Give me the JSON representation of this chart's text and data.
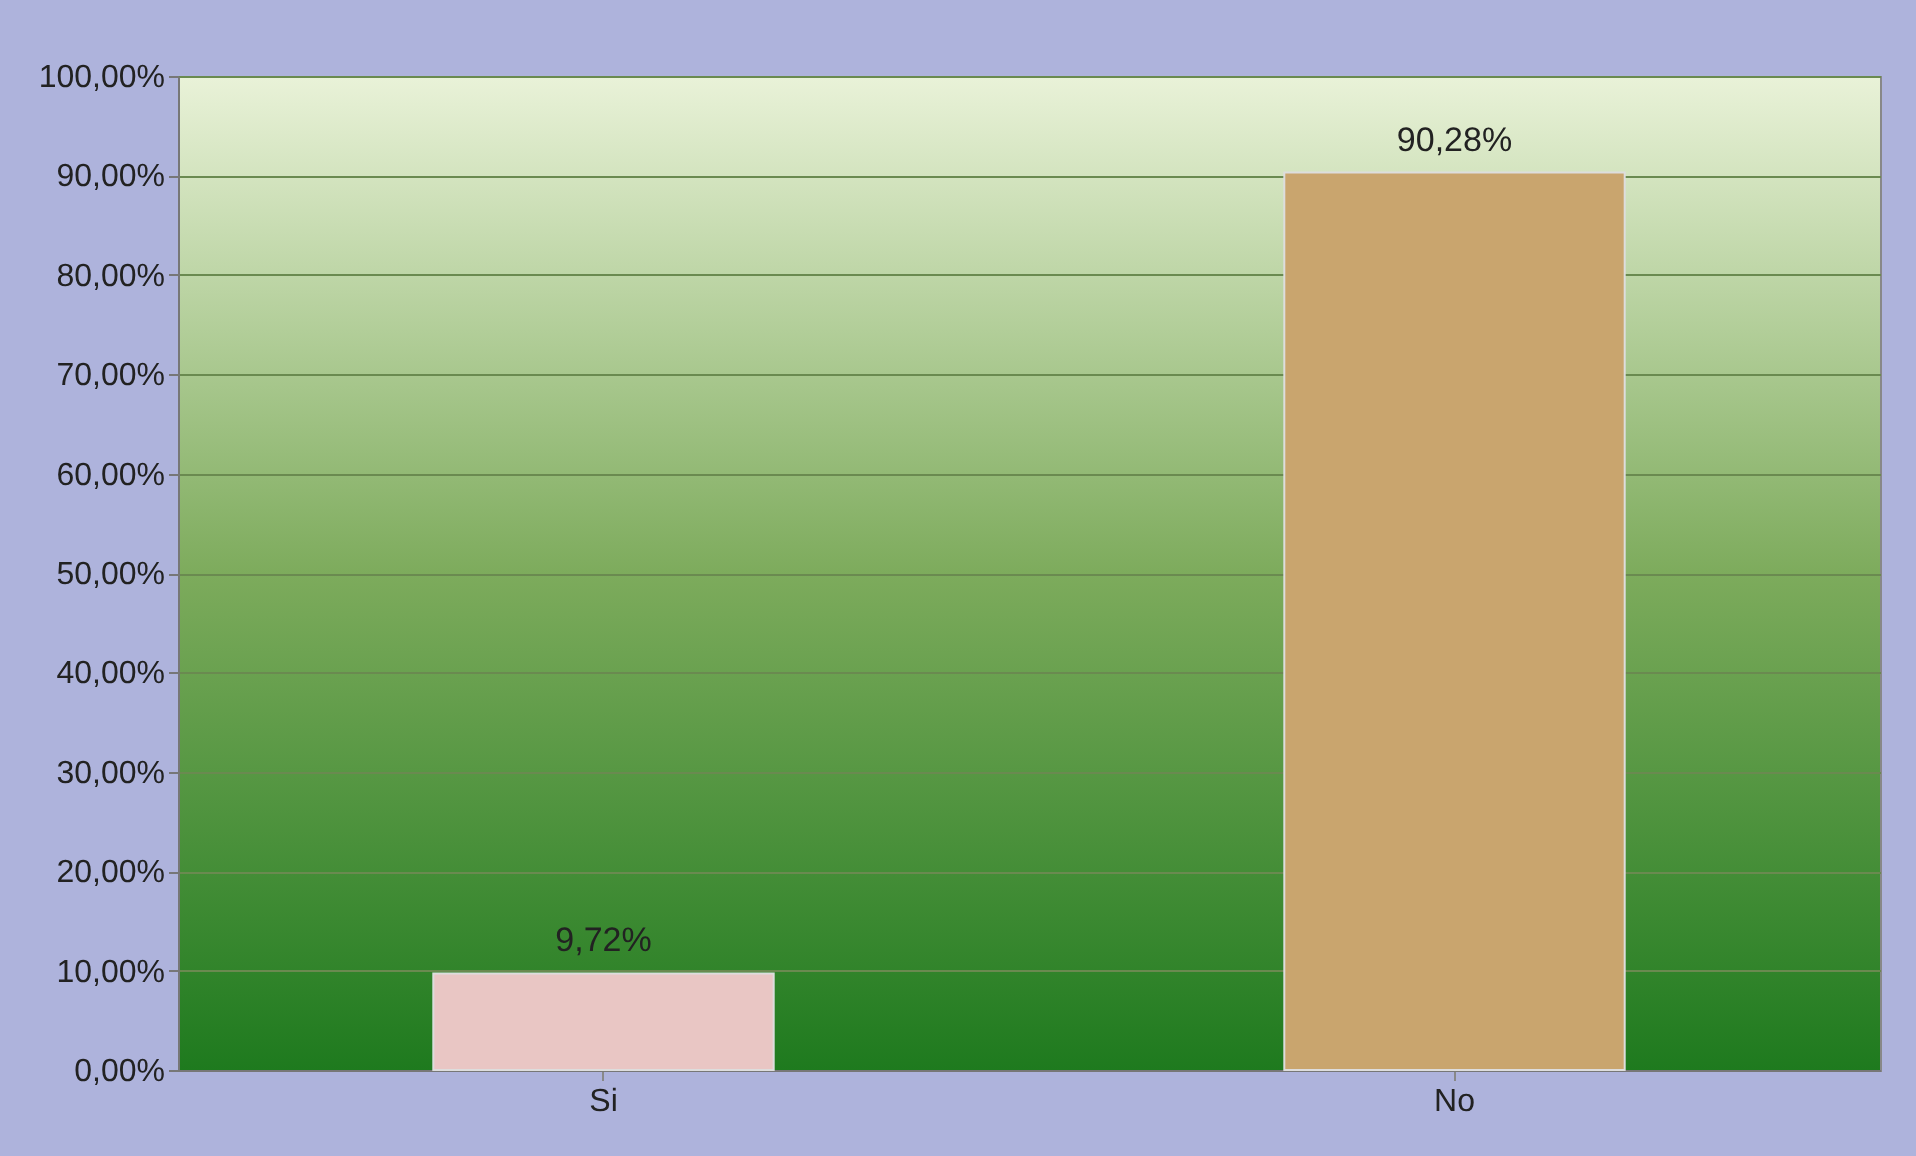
{
  "chart_data": {
    "type": "bar",
    "categories": [
      "Si",
      "No"
    ],
    "values": [
      9.72,
      90.28
    ],
    "colors": [
      "#e9c6c4",
      "#c9a56e"
    ],
    "value_labels": [
      "9,72%",
      "90,28%"
    ],
    "ylim": [
      0,
      100
    ],
    "yticks": [
      {
        "value": 0,
        "label": "0,00%"
      },
      {
        "value": 10,
        "label": "10,00%"
      },
      {
        "value": 20,
        "label": "20,00%"
      },
      {
        "value": 30,
        "label": "30,00%"
      },
      {
        "value": 40,
        "label": "40,00%"
      },
      {
        "value": 50,
        "label": "50,00%"
      },
      {
        "value": 60,
        "label": "60,00%"
      },
      {
        "value": 70,
        "label": "70,00%"
      },
      {
        "value": 80,
        "label": "80,00%"
      },
      {
        "value": 90,
        "label": "90,00%"
      },
      {
        "value": 100,
        "label": "100,00%"
      }
    ],
    "grid": "y"
  }
}
